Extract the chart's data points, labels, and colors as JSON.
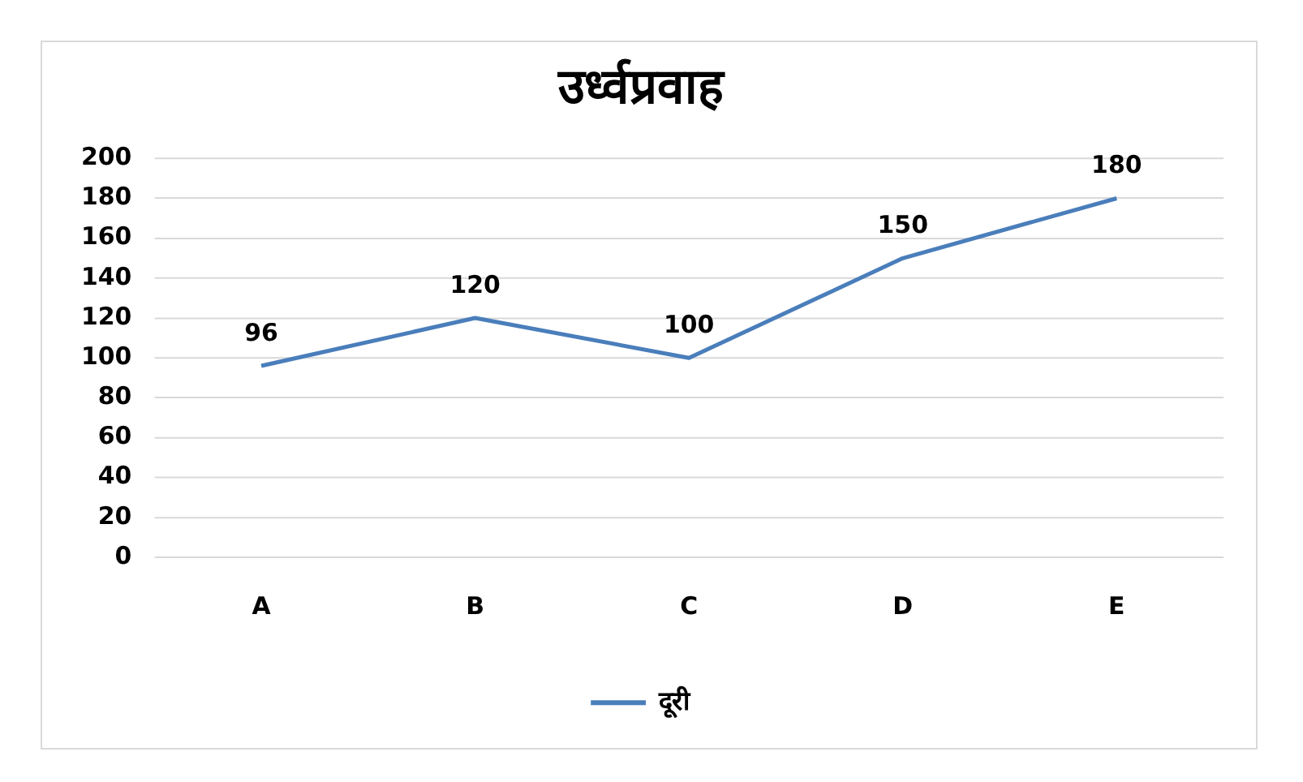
{
  "chart_data": {
    "type": "line",
    "title": "उर्ध्वप्रवाह",
    "categories": [
      "A",
      "B",
      "C",
      "D",
      "E"
    ],
    "series": [
      {
        "name": "दूरी",
        "color": "#4a7ebb",
        "values": [
          96,
          120,
          100,
          150,
          180
        ]
      }
    ],
    "ylim": [
      0,
      200
    ],
    "yticks": [
      0,
      20,
      40,
      60,
      80,
      100,
      120,
      140,
      160,
      180,
      200
    ],
    "grid": "y",
    "legend": "bottom",
    "marker": "none",
    "line_style": "solid",
    "data_labels": true
  }
}
